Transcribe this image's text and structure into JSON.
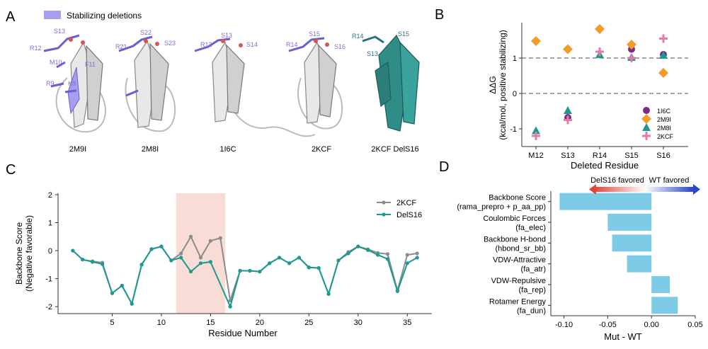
{
  "panel_labels": [
    "A",
    "B",
    "C",
    "D"
  ],
  "panel_a": {
    "legend_label": "Stabilizing deletions",
    "structures": [
      {
        "name": "2M9I",
        "residue_labels": [
          "S13",
          "R12",
          "M10",
          "F11",
          "R9",
          "K8"
        ]
      },
      {
        "name": "2M8I",
        "residue_labels": [
          "S22",
          "R21",
          "S23"
        ]
      },
      {
        "name": "1I6C",
        "residue_labels": [
          "S13",
          "R12",
          "S14"
        ]
      },
      {
        "name": "2KCF",
        "residue_labels": [
          "S15",
          "R14",
          "S16"
        ]
      },
      {
        "name": "2KCF DelS16",
        "residue_labels": [
          "R14",
          "S15",
          "S13"
        ]
      }
    ]
  },
  "colors": {
    "accent_purple": "#8878e0",
    "teal": "#1a9a92",
    "gray_line": "#8c8c8c",
    "highlight_region": "#fadcd6",
    "bar_blue": "#7ecbe8",
    "marker_1I6C": "#7d2a8c",
    "marker_2M9I": "#f39c27",
    "marker_2M8I": "#1a9a92",
    "marker_2KCF": "#e47aa8",
    "arrow_red": "#e0473c",
    "arrow_blue": "#2b46c8"
  },
  "chart_data": [
    {
      "panel": "B",
      "type": "scatter",
      "xlabel": "Deleted Residue",
      "ylabel_lines": [
        "ΔΔG",
        "(kcal/mol, positive stabilizing)"
      ],
      "categories": [
        "M12",
        "S13",
        "R14",
        "S15",
        "S16"
      ],
      "ylim": [
        -1.5,
        2.0
      ],
      "yticks": [
        "-1",
        "0",
        "1"
      ],
      "reference_lines": [
        0,
        1
      ],
      "legend_placement": "lower-right",
      "series": [
        {
          "name": "1I6C",
          "marker": "circle",
          "color_key": "marker_1I6C",
          "points": [
            {
              "x": "S13",
              "y": -0.68
            },
            {
              "x": "S15",
              "y": 1.25
            },
            {
              "x": "S16",
              "y": 1.1
            }
          ]
        },
        {
          "name": "2M9I",
          "marker": "diamond",
          "color_key": "marker_2M9I",
          "points": [
            {
              "x": "M12",
              "y": 1.48
            },
            {
              "x": "S13",
              "y": 1.25
            },
            {
              "x": "R14",
              "y": 1.82
            },
            {
              "x": "S15",
              "y": 1.38
            },
            {
              "x": "S16",
              "y": 0.58
            }
          ]
        },
        {
          "name": "2M8I",
          "marker": "triangle",
          "color_key": "marker_2M8I",
          "points": [
            {
              "x": "M12",
              "y": -1.05
            },
            {
              "x": "S13",
              "y": -0.48
            },
            {
              "x": "R14",
              "y": 1.1
            },
            {
              "x": "S15",
              "y": 1.02
            },
            {
              "x": "S16",
              "y": 1.08
            }
          ]
        },
        {
          "name": "2KCF",
          "marker": "plus",
          "color_key": "marker_2KCF",
          "points": [
            {
              "x": "M12",
              "y": -1.2
            },
            {
              "x": "S13",
              "y": -0.75
            },
            {
              "x": "R14",
              "y": 1.18
            },
            {
              "x": "S15",
              "y": 1.0
            },
            {
              "x": "S16",
              "y": 1.55
            }
          ]
        }
      ]
    },
    {
      "panel": "C",
      "type": "line",
      "xlabel": "Residue Number",
      "ylabel_lines": [
        "Backbone Score",
        "(Negative favorable)"
      ],
      "xlim": [
        -0.5,
        37.5
      ],
      "ylim": [
        -2.25,
        2.05
      ],
      "xticks": [
        5,
        10,
        15,
        20,
        25,
        30,
        35
      ],
      "yticks": [
        -2,
        -1,
        0,
        1,
        2
      ],
      "highlight_x": [
        11.5,
        16.5
      ],
      "legend_placement": "top-right",
      "series": [
        {
          "name": "2KCF",
          "color_key": "gray_line",
          "x": [
            1,
            2,
            3,
            4,
            5,
            6,
            7,
            8,
            9,
            10,
            11,
            12,
            13,
            14,
            15,
            16,
            17,
            18,
            19,
            20,
            21,
            22,
            23,
            24,
            25,
            26,
            27,
            28,
            29,
            30,
            31,
            32,
            33,
            34,
            35,
            36
          ],
          "y": [
            0.0,
            -0.32,
            -0.38,
            -0.43,
            -1.52,
            -1.25,
            -1.9,
            -0.5,
            0.06,
            0.15,
            -0.35,
            -0.1,
            0.5,
            -0.25,
            0.35,
            0.45,
            -1.78,
            -0.72,
            -0.72,
            -0.75,
            -0.45,
            -0.25,
            -0.45,
            -0.25,
            -0.6,
            -0.62,
            -1.55,
            -0.35,
            -0.05,
            0.15,
            0.05,
            -0.08,
            -0.12,
            -1.42,
            -0.15,
            -0.1
          ]
        },
        {
          "name": "DelS16",
          "color_key": "teal",
          "x": [
            1,
            2,
            3,
            4,
            5,
            6,
            7,
            8,
            9,
            10,
            11,
            12,
            13,
            14,
            15,
            17,
            18,
            19,
            20,
            21,
            22,
            23,
            24,
            25,
            26,
            27,
            28,
            29,
            30,
            31,
            32,
            33,
            34,
            35,
            36
          ],
          "y": [
            0.0,
            -0.32,
            -0.4,
            -0.48,
            -1.52,
            -1.25,
            -1.9,
            -0.5,
            0.05,
            0.15,
            -0.35,
            -0.25,
            -0.75,
            -0.45,
            -0.4,
            -2.0,
            -0.72,
            -0.72,
            -0.75,
            -0.45,
            -0.25,
            -0.45,
            -0.25,
            -0.6,
            -0.62,
            -1.55,
            -0.35,
            -0.1,
            0.15,
            0.02,
            -0.15,
            -0.3,
            -1.45,
            -0.45,
            -0.25
          ]
        }
      ]
    },
    {
      "panel": "D",
      "type": "bar",
      "orientation": "horizontal",
      "xlabel": "Mut - WT",
      "xlim": [
        -0.115,
        0.05
      ],
      "xticks": [
        "-0.10",
        "-0.05",
        "0.00",
        "0.05"
      ],
      "arrow_left_label": "DelS16 favored",
      "arrow_right_label": "WT favored",
      "categories": [
        [
          "Backbone Score",
          "(rama_prepro + p_aa_pp)"
        ],
        [
          "Coulombic Forces",
          "(fa_elec)"
        ],
        [
          "Backbone H-bond",
          "(hbond_sr_bb)"
        ],
        [
          "VDW-Attractive",
          "(fa_atr)"
        ],
        [
          "VDW-Repulsive",
          "(fa_rep)"
        ],
        [
          "Rotamer Energy",
          "(fa_dun)"
        ]
      ],
      "values": [
        -0.105,
        -0.05,
        -0.045,
        -0.028,
        0.021,
        0.03
      ]
    }
  ]
}
